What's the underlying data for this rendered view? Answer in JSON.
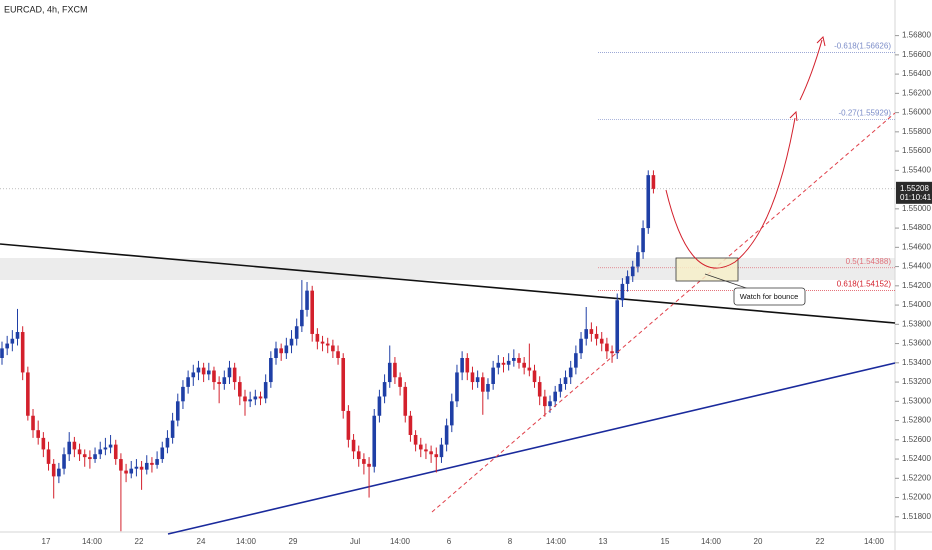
{
  "chart_data": {
    "type": "candlestick",
    "title": "EURCAD, 4h, FXCM",
    "up_color": "#1f3fa6",
    "down_color": "#d3202c",
    "ylim": [
      1.51642,
      1.5717
    ],
    "yticks": [
      {
        "value": 1.518,
        "label": "1.51800"
      },
      {
        "value": 1.52,
        "label": "1.52000"
      },
      {
        "value": 1.522,
        "label": "1.52200"
      },
      {
        "value": 1.524,
        "label": "1.52400"
      },
      {
        "value": 1.526,
        "label": "1.52600"
      },
      {
        "value": 1.528,
        "label": "1.52800"
      },
      {
        "value": 1.53,
        "label": "1.53000"
      },
      {
        "value": 1.532,
        "label": "1.53200"
      },
      {
        "value": 1.534,
        "label": "1.53400"
      },
      {
        "value": 1.536,
        "label": "1.53600"
      },
      {
        "value": 1.538,
        "label": "1.53800"
      },
      {
        "value": 1.54,
        "label": "1.54000"
      },
      {
        "value": 1.542,
        "label": "1.54200"
      },
      {
        "value": 1.544,
        "label": "1.54400"
      },
      {
        "value": 1.546,
        "label": "1.54600"
      },
      {
        "value": 1.548,
        "label": "1.54800"
      },
      {
        "value": 1.55,
        "label": "1.55000"
      },
      {
        "value": 1.554,
        "label": "1.55400"
      },
      {
        "value": 1.556,
        "label": "1.55600"
      },
      {
        "value": 1.558,
        "label": "1.55800"
      },
      {
        "value": 1.56,
        "label": "1.56000"
      },
      {
        "value": 1.562,
        "label": "1.56200"
      },
      {
        "value": 1.564,
        "label": "1.56400"
      },
      {
        "value": 1.566,
        "label": "1.56600"
      },
      {
        "value": 1.568,
        "label": "1.56800"
      }
    ],
    "x_labels": [
      "17",
      "14:00",
      "22",
      "24",
      "14:00",
      "29",
      "Jul",
      "14:00",
      "6",
      "8",
      "14:00",
      "13",
      "15",
      "14:00",
      "20",
      "22",
      "14:00"
    ],
    "last_price": 1.55208,
    "countdown": "01:10:41",
    "fib_levels": [
      {
        "label": "-0.618(1.56626)",
        "price": 1.56626,
        "color": "#7b8cc8"
      },
      {
        "label": "-0.27(1.55929)",
        "price": 1.55929,
        "color": "#7b8cc8"
      },
      {
        "label": "0.5(1.54388)",
        "price": 1.54388,
        "color": "#e0707a"
      },
      {
        "label": "0.618(1.54152)",
        "price": 1.54152,
        "color": "#d3202c"
      }
    ],
    "annotations": [
      "Watch for bounce"
    ],
    "candles": [
      [
        1.5345,
        1.5362,
        1.5338,
        1.5355
      ],
      [
        1.5355,
        1.5368,
        1.5348,
        1.536
      ],
      [
        1.536,
        1.5374,
        1.5352,
        1.5365
      ],
      [
        1.5365,
        1.5396,
        1.5358,
        1.5372
      ],
      [
        1.5372,
        1.5378,
        1.5322,
        1.533
      ],
      [
        1.533,
        1.5336,
        1.528,
        1.5285
      ],
      [
        1.5285,
        1.5292,
        1.5262,
        1.527
      ],
      [
        1.527,
        1.528,
        1.5255,
        1.5262
      ],
      [
        1.5262,
        1.5268,
        1.5242,
        1.525
      ],
      [
        1.525,
        1.5258,
        1.5228,
        1.5235
      ],
      [
        1.5235,
        1.524,
        1.5199,
        1.5222
      ],
      [
        1.5222,
        1.5236,
        1.5215,
        1.523
      ],
      [
        1.523,
        1.5252,
        1.5224,
        1.5245
      ],
      [
        1.5245,
        1.5268,
        1.5238,
        1.5258
      ],
      [
        1.5258,
        1.5263,
        1.5242,
        1.525
      ],
      [
        1.525,
        1.5256,
        1.5238,
        1.5245
      ],
      [
        1.5245,
        1.525,
        1.5232,
        1.5242
      ],
      [
        1.5242,
        1.5249,
        1.523,
        1.524
      ],
      [
        1.524,
        1.5252,
        1.5236,
        1.5245
      ],
      [
        1.5245,
        1.5258,
        1.524,
        1.525
      ],
      [
        1.525,
        1.5262,
        1.5244,
        1.5252
      ],
      [
        1.5252,
        1.5265,
        1.5246,
        1.5255
      ],
      [
        1.5255,
        1.526,
        1.5234,
        1.524
      ],
      [
        1.524,
        1.5246,
        1.5165,
        1.5228
      ],
      [
        1.5228,
        1.5235,
        1.5216,
        1.5225
      ],
      [
        1.5225,
        1.5238,
        1.522,
        1.523
      ],
      [
        1.523,
        1.524,
        1.5222,
        1.5232
      ],
      [
        1.5232,
        1.5238,
        1.5208,
        1.5229
      ],
      [
        1.5229,
        1.5244,
        1.5224,
        1.5236
      ],
      [
        1.5236,
        1.5242,
        1.5226,
        1.5234
      ],
      [
        1.5234,
        1.5248,
        1.523,
        1.524
      ],
      [
        1.524,
        1.5258,
        1.5236,
        1.5252
      ],
      [
        1.5252,
        1.527,
        1.5246,
        1.5262
      ],
      [
        1.5262,
        1.5288,
        1.5256,
        1.528
      ],
      [
        1.528,
        1.5308,
        1.5274,
        1.53
      ],
      [
        1.53,
        1.5322,
        1.5292,
        1.5315
      ],
      [
        1.5315,
        1.5332,
        1.5308,
        1.5325
      ],
      [
        1.5325,
        1.5338,
        1.5316,
        1.533
      ],
      [
        1.533,
        1.5342,
        1.5322,
        1.5335
      ],
      [
        1.5335,
        1.534,
        1.532,
        1.5328
      ],
      [
        1.5328,
        1.534,
        1.5322,
        1.5332
      ],
      [
        1.5332,
        1.5336,
        1.5312,
        1.532
      ],
      [
        1.532,
        1.5326,
        1.5298,
        1.5318
      ],
      [
        1.5318,
        1.5332,
        1.5312,
        1.5325
      ],
      [
        1.5325,
        1.5342,
        1.5318,
        1.5335
      ],
      [
        1.5335,
        1.534,
        1.5312,
        1.532
      ],
      [
        1.532,
        1.5326,
        1.5296,
        1.5305
      ],
      [
        1.5305,
        1.5312,
        1.5285,
        1.53
      ],
      [
        1.53,
        1.531,
        1.5294,
        1.5302
      ],
      [
        1.5302,
        1.5312,
        1.5296,
        1.5305
      ],
      [
        1.5305,
        1.531,
        1.5296,
        1.5303
      ],
      [
        1.5303,
        1.5328,
        1.5298,
        1.532
      ],
      [
        1.532,
        1.5352,
        1.5314,
        1.5345
      ],
      [
        1.5345,
        1.5362,
        1.5338,
        1.5355
      ],
      [
        1.5355,
        1.536,
        1.5342,
        1.535
      ],
      [
        1.535,
        1.5366,
        1.5344,
        1.5358
      ],
      [
        1.5358,
        1.5374,
        1.535,
        1.5365
      ],
      [
        1.5365,
        1.5386,
        1.5358,
        1.5378
      ],
      [
        1.5378,
        1.5426,
        1.5372,
        1.5395
      ],
      [
        1.5395,
        1.5424,
        1.5388,
        1.5415
      ],
      [
        1.5415,
        1.542,
        1.5362,
        1.537
      ],
      [
        1.537,
        1.5376,
        1.5354,
        1.5362
      ],
      [
        1.5362,
        1.5368,
        1.5352,
        1.536
      ],
      [
        1.536,
        1.5366,
        1.535,
        1.5358
      ],
      [
        1.5358,
        1.5364,
        1.5345,
        1.5352
      ],
      [
        1.5352,
        1.5358,
        1.5338,
        1.5345
      ],
      [
        1.5345,
        1.535,
        1.5282,
        1.529
      ],
      [
        1.529,
        1.5296,
        1.5252,
        1.526
      ],
      [
        1.526,
        1.5266,
        1.524,
        1.5248
      ],
      [
        1.5248,
        1.5254,
        1.5232,
        1.524
      ],
      [
        1.524,
        1.5246,
        1.5224,
        1.5235
      ],
      [
        1.5235,
        1.5242,
        1.52,
        1.5232
      ],
      [
        1.5232,
        1.5292,
        1.5226,
        1.5285
      ],
      [
        1.5285,
        1.5312,
        1.5278,
        1.5305
      ],
      [
        1.5305,
        1.5328,
        1.5298,
        1.532
      ],
      [
        1.532,
        1.5358,
        1.5314,
        1.534
      ],
      [
        1.534,
        1.5346,
        1.5318,
        1.5325
      ],
      [
        1.5325,
        1.533,
        1.5306,
        1.5315
      ],
      [
        1.5315,
        1.532,
        1.5278,
        1.5285
      ],
      [
        1.5285,
        1.529,
        1.5258,
        1.5265
      ],
      [
        1.5265,
        1.527,
        1.5248,
        1.5255
      ],
      [
        1.5255,
        1.5262,
        1.5242,
        1.525
      ],
      [
        1.525,
        1.5256,
        1.524,
        1.5248
      ],
      [
        1.5248,
        1.5254,
        1.5236,
        1.5245
      ],
      [
        1.5245,
        1.5252,
        1.5226,
        1.5242
      ],
      [
        1.5242,
        1.5262,
        1.5236,
        1.5255
      ],
      [
        1.5255,
        1.5282,
        1.5248,
        1.5275
      ],
      [
        1.5275,
        1.5308,
        1.5268,
        1.53
      ],
      [
        1.53,
        1.5338,
        1.5294,
        1.533
      ],
      [
        1.533,
        1.5352,
        1.5322,
        1.5345
      ],
      [
        1.5345,
        1.535,
        1.5322,
        1.533
      ],
      [
        1.533,
        1.5336,
        1.5312,
        1.532
      ],
      [
        1.532,
        1.5332,
        1.5314,
        1.5325
      ],
      [
        1.5325,
        1.533,
        1.5286,
        1.531
      ],
      [
        1.531,
        1.5324,
        1.5302,
        1.5318
      ],
      [
        1.5318,
        1.5342,
        1.5312,
        1.5335
      ],
      [
        1.5335,
        1.5348,
        1.5328,
        1.534
      ],
      [
        1.534,
        1.5346,
        1.533,
        1.5338
      ],
      [
        1.5338,
        1.535,
        1.5332,
        1.5342
      ],
      [
        1.5342,
        1.5354,
        1.5336,
        1.5345
      ],
      [
        1.5345,
        1.535,
        1.5334,
        1.534
      ],
      [
        1.534,
        1.5346,
        1.5328,
        1.5335
      ],
      [
        1.5335,
        1.536,
        1.5326,
        1.5332
      ],
      [
        1.5332,
        1.5338,
        1.5314,
        1.532
      ],
      [
        1.532,
        1.5326,
        1.5296,
        1.5305
      ],
      [
        1.5305,
        1.5312,
        1.5284,
        1.5295
      ],
      [
        1.5295,
        1.5306,
        1.5288,
        1.53
      ],
      [
        1.53,
        1.5316,
        1.5294,
        1.531
      ],
      [
        1.531,
        1.5324,
        1.5304,
        1.5318
      ],
      [
        1.5318,
        1.5332,
        1.5312,
        1.5325
      ],
      [
        1.5325,
        1.5342,
        1.5318,
        1.5335
      ],
      [
        1.5335,
        1.5358,
        1.5328,
        1.535
      ],
      [
        1.535,
        1.5372,
        1.5344,
        1.5365
      ],
      [
        1.5365,
        1.5398,
        1.5358,
        1.5375
      ],
      [
        1.5375,
        1.5382,
        1.5362,
        1.537
      ],
      [
        1.537,
        1.5378,
        1.5358,
        1.5365
      ],
      [
        1.5365,
        1.5372,
        1.5352,
        1.536
      ],
      [
        1.536,
        1.5366,
        1.5344,
        1.5352
      ],
      [
        1.5352,
        1.5358,
        1.534,
        1.535
      ],
      [
        1.535,
        1.5412,
        1.5344,
        1.5405
      ],
      [
        1.5405,
        1.5428,
        1.5398,
        1.5422
      ],
      [
        1.5422,
        1.5436,
        1.5414,
        1.543
      ],
      [
        1.543,
        1.5446,
        1.5424,
        1.544
      ],
      [
        1.544,
        1.5462,
        1.5434,
        1.5455
      ],
      [
        1.5455,
        1.5488,
        1.5448,
        1.548
      ],
      [
        1.548,
        1.554,
        1.5474,
        1.5535
      ],
      [
        1.5535,
        1.554,
        1.5516,
        1.55208
      ]
    ]
  }
}
